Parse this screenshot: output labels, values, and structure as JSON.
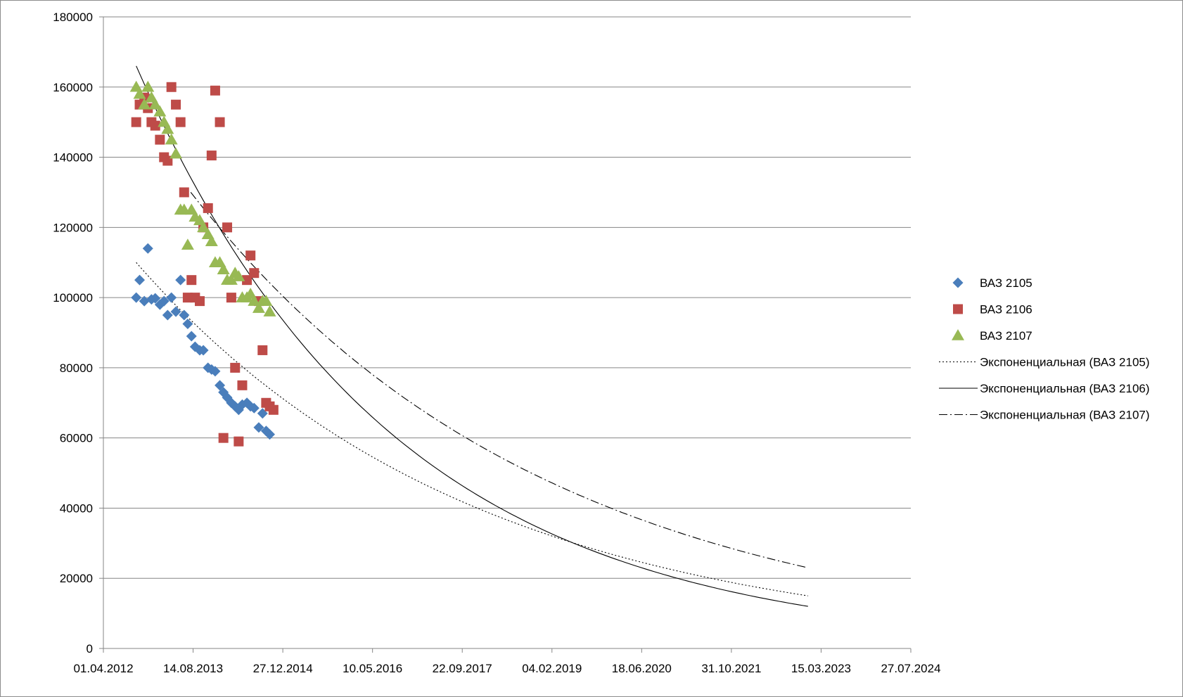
{
  "chart_data": {
    "type": "scatter",
    "title": "",
    "xlabel": "",
    "ylabel": "",
    "x_axis": {
      "type": "date",
      "range": [
        "2012-04-01",
        "2024-07-27"
      ],
      "tick_labels": [
        "01.04.2012",
        "14.08.2013",
        "27.12.2014",
        "10.05.2016",
        "22.09.2017",
        "04.02.2019",
        "18.06.2020",
        "31.10.2021",
        "15.03.2023",
        "27.07.2024"
      ],
      "tick_dates": [
        "2012-04-01",
        "2013-08-14",
        "2014-12-27",
        "2016-05-10",
        "2017-09-22",
        "2019-02-04",
        "2020-06-18",
        "2021-10-31",
        "2023-03-15",
        "2024-07-27"
      ]
    },
    "y_axis": {
      "range": [
        0,
        180000
      ],
      "tick_labels": [
        "0",
        "20000",
        "40000",
        "60000",
        "80000",
        "100000",
        "120000",
        "140000",
        "160000",
        "180000"
      ],
      "tick_values": [
        0,
        20000,
        40000,
        60000,
        80000,
        100000,
        120000,
        140000,
        160000,
        180000
      ]
    },
    "grid": "horizontal major gridlines",
    "legend_position": "right",
    "series": [
      {
        "name": "ВАЗ 2105",
        "marker": "diamond",
        "color": "#4a7ebb",
        "points": [
          [
            "2012-10-01",
            100000
          ],
          [
            "2012-10-20",
            105000
          ],
          [
            "2012-11-15",
            99000
          ],
          [
            "2012-12-05",
            114000
          ],
          [
            "2012-12-25",
            99500
          ],
          [
            "2013-01-15",
            99800
          ],
          [
            "2013-02-10",
            98000
          ],
          [
            "2013-03-05",
            99000
          ],
          [
            "2013-03-25",
            95000
          ],
          [
            "2013-04-15",
            100000
          ],
          [
            "2013-05-10",
            96000
          ],
          [
            "2013-06-05",
            105000
          ],
          [
            "2013-06-25",
            95000
          ],
          [
            "2013-07-15",
            92500
          ],
          [
            "2013-08-05",
            89000
          ],
          [
            "2013-08-25",
            86000
          ],
          [
            "2013-09-20",
            85000
          ],
          [
            "2013-10-10",
            85000
          ],
          [
            "2013-11-05",
            80000
          ],
          [
            "2013-11-25",
            79500
          ],
          [
            "2013-12-15",
            79000
          ],
          [
            "2014-01-10",
            75000
          ],
          [
            "2014-01-30",
            73000
          ],
          [
            "2014-02-20",
            71500
          ],
          [
            "2014-03-15",
            70000
          ],
          [
            "2014-04-05",
            69000
          ],
          [
            "2014-04-25",
            68000
          ],
          [
            "2014-05-15",
            69500
          ],
          [
            "2014-06-10",
            70000
          ],
          [
            "2014-06-30",
            69000
          ],
          [
            "2014-07-20",
            68500
          ],
          [
            "2014-08-15",
            63000
          ],
          [
            "2014-09-05",
            67000
          ],
          [
            "2014-09-25",
            62000
          ],
          [
            "2014-10-15",
            61000
          ]
        ]
      },
      {
        "name": "ВАЗ 2106",
        "marker": "square",
        "color": "#be4b48",
        "points": [
          [
            "2012-10-01",
            150000
          ],
          [
            "2012-10-20",
            155000
          ],
          [
            "2012-11-15",
            157000
          ],
          [
            "2012-12-05",
            154000
          ],
          [
            "2012-12-25",
            150000
          ],
          [
            "2013-01-15",
            149000
          ],
          [
            "2013-02-10",
            145000
          ],
          [
            "2013-03-05",
            140000
          ],
          [
            "2013-03-25",
            139000
          ],
          [
            "2013-04-15",
            160000
          ],
          [
            "2013-05-10",
            155000
          ],
          [
            "2013-06-05",
            150000
          ],
          [
            "2013-06-25",
            130000
          ],
          [
            "2013-07-15",
            100000
          ],
          [
            "2013-08-05",
            105000
          ],
          [
            "2013-08-25",
            100000
          ],
          [
            "2013-09-20",
            99000
          ],
          [
            "2013-10-10",
            120000
          ],
          [
            "2013-11-05",
            125500
          ],
          [
            "2013-11-25",
            140500
          ],
          [
            "2013-12-15",
            159000
          ],
          [
            "2014-01-10",
            150000
          ],
          [
            "2014-01-30",
            60000
          ],
          [
            "2014-02-20",
            120000
          ],
          [
            "2014-03-15",
            100000
          ],
          [
            "2014-04-05",
            80000
          ],
          [
            "2014-04-25",
            59000
          ],
          [
            "2014-05-15",
            75000
          ],
          [
            "2014-06-10",
            105000
          ],
          [
            "2014-06-30",
            112000
          ],
          [
            "2014-07-20",
            107000
          ],
          [
            "2014-08-15",
            99000
          ],
          [
            "2014-09-05",
            85000
          ],
          [
            "2014-09-25",
            70000
          ],
          [
            "2014-10-15",
            69000
          ],
          [
            "2014-11-05",
            68000
          ]
        ]
      },
      {
        "name": "ВАЗ 2107",
        "marker": "triangle",
        "color": "#98b954",
        "points": [
          [
            "2012-10-01",
            160000
          ],
          [
            "2012-10-20",
            158000
          ],
          [
            "2012-11-15",
            155000
          ],
          [
            "2012-12-05",
            160000
          ],
          [
            "2012-12-25",
            157000
          ],
          [
            "2013-01-15",
            155000
          ],
          [
            "2013-02-10",
            153000
          ],
          [
            "2013-03-05",
            150000
          ],
          [
            "2013-03-25",
            148000
          ],
          [
            "2013-04-15",
            145000
          ],
          [
            "2013-05-10",
            141000
          ],
          [
            "2013-06-05",
            125000
          ],
          [
            "2013-06-25",
            125000
          ],
          [
            "2013-07-15",
            115000
          ],
          [
            "2013-08-05",
            125000
          ],
          [
            "2013-08-25",
            123000
          ],
          [
            "2013-09-20",
            122000
          ],
          [
            "2013-10-10",
            120000
          ],
          [
            "2013-11-05",
            118000
          ],
          [
            "2013-11-25",
            116000
          ],
          [
            "2013-12-15",
            110000
          ],
          [
            "2014-01-10",
            110000
          ],
          [
            "2014-01-30",
            108000
          ],
          [
            "2014-02-20",
            105000
          ],
          [
            "2014-03-15",
            105000
          ],
          [
            "2014-04-05",
            107000
          ],
          [
            "2014-04-25",
            106000
          ],
          [
            "2014-05-15",
            100000
          ],
          [
            "2014-06-10",
            100000
          ],
          [
            "2014-06-30",
            101000
          ],
          [
            "2014-07-20",
            99000
          ],
          [
            "2014-08-15",
            97000
          ],
          [
            "2014-09-05",
            99000
          ],
          [
            "2014-09-25",
            99000
          ],
          [
            "2014-10-15",
            96000
          ]
        ]
      }
    ],
    "trendlines": [
      {
        "name": "Экспоненциальная (ВАЗ 2105)",
        "type": "exponential",
        "style": "dotted",
        "color": "#000000",
        "start": [
          "2012-10-01",
          110000
        ],
        "end": [
          "2023-01-01",
          15000
        ]
      },
      {
        "name": "Экспоненциальная (ВАЗ 2106)",
        "type": "exponential",
        "style": "solid",
        "color": "#000000",
        "start": [
          "2012-10-01",
          166000
        ],
        "end": [
          "2023-01-01",
          12000
        ]
      },
      {
        "name": "Экспоненциальная (ВАЗ 2107)",
        "type": "exponential",
        "style": "dash-dot",
        "color": "#000000",
        "start": [
          "2013-08-01",
          130000
        ],
        "end": [
          "2023-01-01",
          23000
        ]
      }
    ]
  }
}
